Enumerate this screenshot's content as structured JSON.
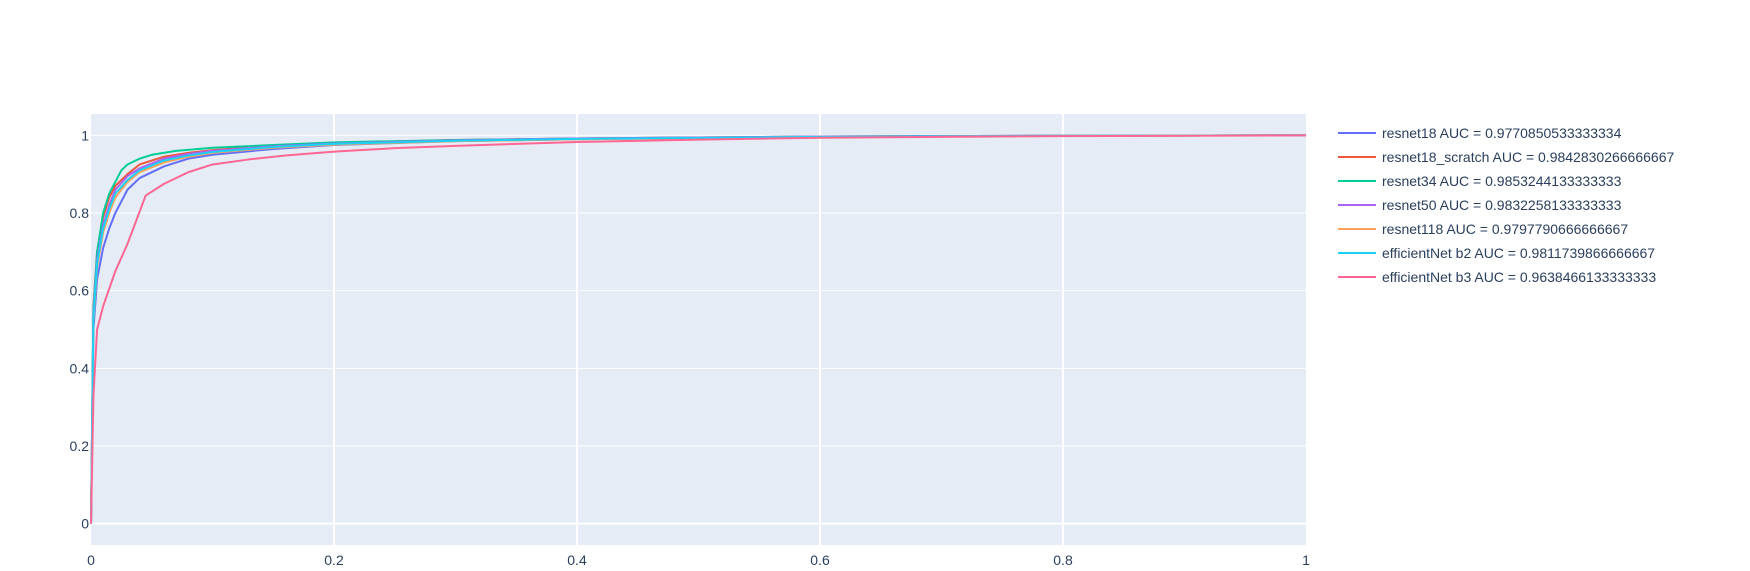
{
  "chart_data": {
    "type": "line",
    "title": "",
    "xlabel": "",
    "ylabel": "",
    "xlim": [
      0,
      1
    ],
    "ylim": [
      -0.055,
      1.055
    ],
    "x_ticks": [
      0,
      0.2,
      0.4,
      0.6,
      0.8,
      1
    ],
    "x_tick_labels": [
      "0",
      "0.2",
      "0.4",
      "0.6",
      "0.8",
      "1"
    ],
    "y_ticks": [
      0,
      0.2,
      0.4,
      0.6,
      0.8,
      1
    ],
    "y_tick_labels": [
      "0",
      "0.2",
      "0.4",
      "0.6",
      "0.8",
      "1"
    ],
    "grid": true,
    "plot_background": "#e5ecf6",
    "grid_color": "#ffffff",
    "legend_position": "right",
    "series": [
      {
        "name": "resnet18 AUC = 0.9770850533333334",
        "color": "#636efa",
        "x": [
          0,
          0.002,
          0.005,
          0.01,
          0.015,
          0.02,
          0.03,
          0.04,
          0.06,
          0.08,
          0.1,
          0.15,
          0.2,
          0.3,
          0.4,
          0.6,
          0.8,
          1
        ],
        "y": [
          0,
          0.5,
          0.63,
          0.71,
          0.76,
          0.8,
          0.86,
          0.89,
          0.92,
          0.94,
          0.95,
          0.965,
          0.975,
          0.985,
          0.99,
          0.996,
          0.999,
          1
        ]
      },
      {
        "name": "resnet18_scratch AUC = 0.9842830266666667",
        "color": "#ef553b",
        "x": [
          0,
          0.002,
          0.005,
          0.01,
          0.015,
          0.02,
          0.03,
          0.04,
          0.06,
          0.08,
          0.1,
          0.15,
          0.2,
          0.3,
          0.4,
          0.6,
          0.8,
          1
        ],
        "y": [
          0,
          0.56,
          0.7,
          0.79,
          0.84,
          0.87,
          0.9,
          0.925,
          0.945,
          0.955,
          0.962,
          0.973,
          0.98,
          0.988,
          0.992,
          0.997,
          0.999,
          1
        ]
      },
      {
        "name": "resnet34 AUC = 0.9853244133333333",
        "color": "#00cc96",
        "x": [
          0,
          0.002,
          0.005,
          0.01,
          0.015,
          0.02,
          0.025,
          0.03,
          0.04,
          0.05,
          0.07,
          0.1,
          0.15,
          0.2,
          0.3,
          0.4,
          0.6,
          0.8,
          1
        ],
        "y": [
          0,
          0.55,
          0.7,
          0.8,
          0.85,
          0.88,
          0.91,
          0.925,
          0.94,
          0.95,
          0.96,
          0.968,
          0.975,
          0.982,
          0.988,
          0.992,
          0.997,
          0.999,
          1
        ]
      },
      {
        "name": "resnet50 AUC = 0.9832258133333333",
        "color": "#ab63fa",
        "x": [
          0,
          0.002,
          0.005,
          0.01,
          0.015,
          0.02,
          0.03,
          0.04,
          0.06,
          0.08,
          0.1,
          0.15,
          0.2,
          0.3,
          0.4,
          0.6,
          0.8,
          1
        ],
        "y": [
          0,
          0.54,
          0.68,
          0.77,
          0.82,
          0.86,
          0.895,
          0.915,
          0.94,
          0.952,
          0.96,
          0.972,
          0.979,
          0.987,
          0.992,
          0.997,
          0.999,
          1
        ]
      },
      {
        "name": "resnet118 AUC = 0.9797790666666667",
        "color": "#ffa15a",
        "x": [
          0,
          0.002,
          0.005,
          0.01,
          0.015,
          0.02,
          0.03,
          0.04,
          0.06,
          0.08,
          0.1,
          0.15,
          0.2,
          0.3,
          0.4,
          0.6,
          0.8,
          1
        ],
        "y": [
          0,
          0.52,
          0.66,
          0.75,
          0.8,
          0.84,
          0.88,
          0.905,
          0.93,
          0.945,
          0.955,
          0.968,
          0.976,
          0.985,
          0.99,
          0.996,
          0.999,
          1
        ]
      },
      {
        "name": "efficientNet b2 AUC = 0.9811739866666667",
        "color": "#19d3f3",
        "x": [
          0,
          0.002,
          0.005,
          0.01,
          0.015,
          0.02,
          0.03,
          0.04,
          0.06,
          0.08,
          0.1,
          0.15,
          0.2,
          0.3,
          0.4,
          0.6,
          0.8,
          1
        ],
        "y": [
          0,
          0.53,
          0.67,
          0.76,
          0.81,
          0.85,
          0.885,
          0.91,
          0.935,
          0.948,
          0.957,
          0.97,
          0.978,
          0.986,
          0.991,
          0.996,
          0.999,
          1
        ]
      },
      {
        "name": "efficientNet b3 AUC = 0.9638466133333333",
        "color": "#ff6692",
        "x": [
          0,
          0.002,
          0.005,
          0.01,
          0.02,
          0.03,
          0.045,
          0.06,
          0.08,
          0.1,
          0.13,
          0.16,
          0.2,
          0.25,
          0.3,
          0.4,
          0.5,
          0.6,
          0.8,
          1
        ],
        "y": [
          0,
          0.33,
          0.5,
          0.56,
          0.65,
          0.72,
          0.845,
          0.875,
          0.905,
          0.925,
          0.938,
          0.948,
          0.958,
          0.967,
          0.973,
          0.983,
          0.989,
          0.994,
          0.998,
          1
        ]
      }
    ]
  }
}
